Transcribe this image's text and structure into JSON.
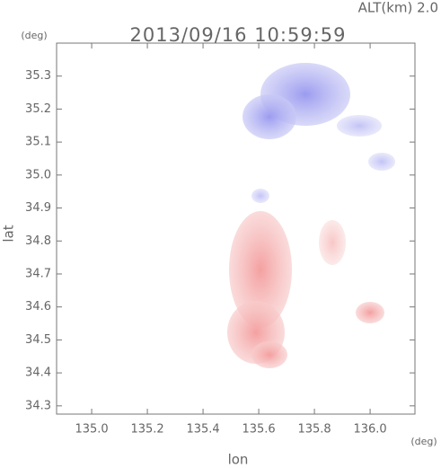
{
  "chart_data": {
    "type": "map",
    "title": "2013/09/16 10:59:59",
    "annotation": "ALT(km) 2.0",
    "x_label": "lon",
    "y_label": "lat",
    "x_unit": "(deg)",
    "y_unit": "(deg)",
    "xlim": [
      134.874,
      136.161
    ],
    "ylim": [
      34.275,
      35.4
    ],
    "xticks": [
      {
        "value": 135.0,
        "label": "135.0"
      },
      135.2,
      135.4,
      135.6,
      135.8,
      {
        "value": 136.0,
        "label": "136.0"
      }
    ],
    "yticks": [
      34.3,
      34.4,
      34.5,
      34.6,
      34.7,
      34.8,
      34.9,
      {
        "value": 35.0,
        "label": "35.0"
      },
      35.1,
      35.2,
      35.3
    ]
  }
}
